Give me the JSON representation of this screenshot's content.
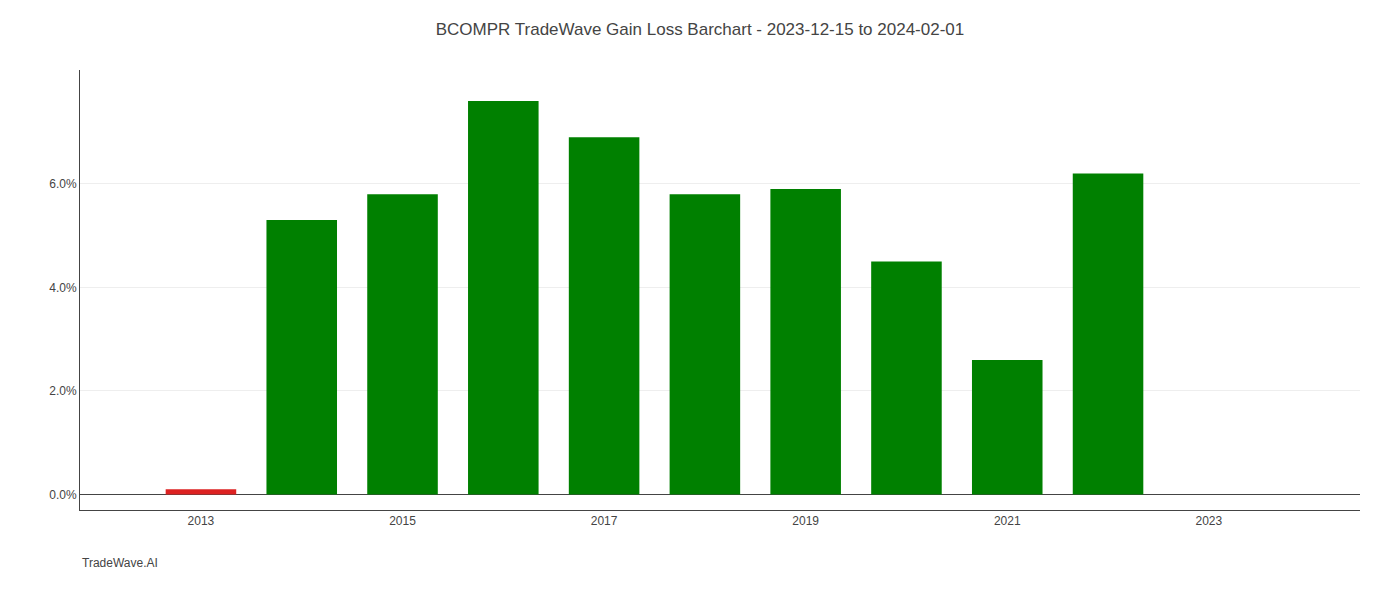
{
  "chart_data": {
    "type": "bar",
    "title": "BCOMPR TradeWave Gain Loss Barchart - 2023-12-15 to 2024-02-01",
    "annotations": [
      "TradeWave.AI"
    ],
    "x": [
      2013,
      2014,
      2015,
      2016,
      2017,
      2018,
      2019,
      2020,
      2021,
      2022,
      2023
    ],
    "values": [
      0.001,
      0.053,
      0.058,
      0.076,
      0.069,
      0.058,
      0.059,
      0.045,
      0.026,
      0.062,
      0.0
    ],
    "colors": [
      "#dd2222",
      "#008000",
      "#008000",
      "#008000",
      "#008000",
      "#008000",
      "#008000",
      "#008000",
      "#008000",
      "#008000",
      "#008000"
    ],
    "xlim": [
      2011.8,
      2024.5
    ],
    "xticks": [
      2013,
      2015,
      2017,
      2019,
      2021,
      2023
    ],
    "ylim": [
      -0.003,
      0.082
    ],
    "yticks": [
      {
        "value": 0.0,
        "label": "0.0%"
      },
      {
        "value": 0.02,
        "label": "2.0%"
      },
      {
        "value": 0.04,
        "label": "4.0%"
      },
      {
        "value": 0.06,
        "label": "6.0%"
      }
    ],
    "grid": true
  }
}
